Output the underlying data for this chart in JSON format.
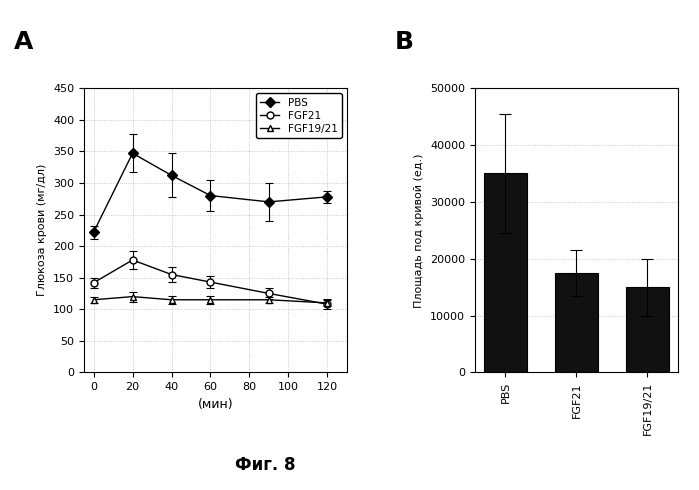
{
  "panel_A": {
    "title": "A",
    "xlabel": "(мин)",
    "ylabel": "Глюкоза крови (мг/дл)",
    "x": [
      0,
      20,
      40,
      60,
      90,
      120
    ],
    "PBS": {
      "y": [
        222,
        347,
        312,
        280,
        270,
        278
      ],
      "yerr": [
        10,
        30,
        35,
        25,
        30,
        10
      ],
      "marker": "D",
      "fillstyle": "full",
      "label": "PBS"
    },
    "FGF21": {
      "y": [
        142,
        178,
        155,
        143,
        125,
        108
      ],
      "yerr": [
        8,
        15,
        12,
        10,
        8,
        8
      ],
      "marker": "o",
      "fillstyle": "none",
      "label": "FGF21"
    },
    "FGF1921": {
      "y": [
        115,
        120,
        115,
        115,
        115,
        110
      ],
      "yerr": [
        5,
        8,
        6,
        6,
        5,
        5
      ],
      "marker": "^",
      "fillstyle": "none",
      "label": "FGF19/21"
    },
    "ylim": [
      0,
      450
    ],
    "xlim": [
      -5,
      130
    ],
    "xticks": [
      0,
      20,
      40,
      60,
      80,
      100,
      120
    ],
    "yticks": [
      0,
      50,
      100,
      150,
      200,
      250,
      300,
      350,
      400,
      450
    ]
  },
  "panel_B": {
    "title": "B",
    "ylabel": "Площадь под кривой (ед.)",
    "categories": [
      "PBS",
      "FGF21",
      "FGF19/21"
    ],
    "values": [
      35000,
      17500,
      15000
    ],
    "yerr": [
      10500,
      4000,
      5000
    ],
    "bar_color": "#111111",
    "ylim": [
      0,
      50000
    ],
    "yticks": [
      0,
      10000,
      20000,
      30000,
      40000,
      50000
    ]
  },
  "fig_label": "Фиг. 8",
  "background_color": "#ffffff",
  "line_color": "#000000",
  "grid_color": "#bbbbbb"
}
